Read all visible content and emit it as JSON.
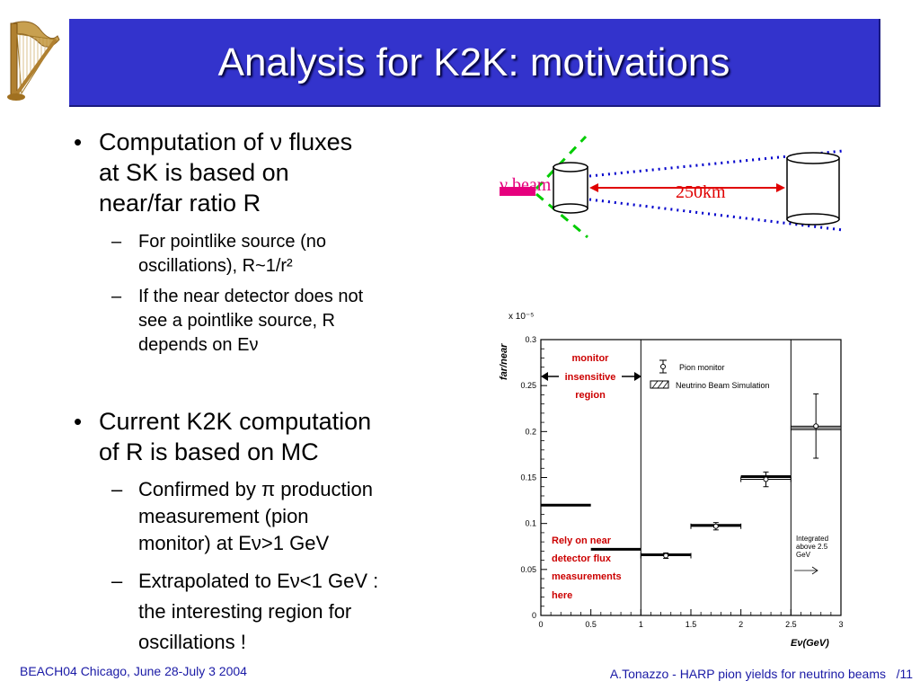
{
  "slide": {
    "title": "Analysis for K2K: motivations",
    "footer_left": "BEACH04 Chicago, June 28-July 3 2004",
    "footer_right": "A.Tonazzo - HARP pion yields for neutrino beams",
    "slide_number": "/11"
  },
  "bullets": {
    "b1_l1": "Computation of ν fluxes",
    "b1_l2": "at SK is based on",
    "b1_l3": "near/far ratio R",
    "s1_l1": "For pointlike source (no",
    "s1_l2": "oscillations), R~1/r²",
    "s2_l1": "If the near detector does not",
    "s2_l2": "see a pointlike source, R",
    "s2_l3": "depends on Eν",
    "b2_l1": "Current K2K computation",
    "b2_l2": "of R is based on MC",
    "s3_l1": "Confirmed by π production",
    "s3_l2": "measurement (pion",
    "s3_l3": "monitor) at Eν>1 GeV",
    "s4_l1": "Extrapolated to Eν<1 GeV :",
    "s4_l2": "the interesting region for",
    "s4_l3": "oscillations !"
  },
  "diagram": {
    "beam_label": "ν beam",
    "distance_label": "250km",
    "colors": {
      "beam": "#e6007e",
      "cone": "#00cc00",
      "dots": "#0000cc",
      "arrow": "#e00000"
    }
  },
  "chart_data": {
    "type": "scatter",
    "exponent_label": "x 10⁻⁵",
    "ylabel": "far/near",
    "xlabel": "Eν(GeV)",
    "xlim": [
      0,
      3
    ],
    "ylim": [
      0,
      0.3
    ],
    "x_ticks": [
      "0",
      "0.5",
      "1",
      "1.5",
      "2",
      "2.5",
      "3"
    ],
    "y_ticks": [
      "0",
      "0.05",
      "0.1",
      "0.15",
      "0.2",
      "0.25",
      "0.3"
    ],
    "legend": {
      "pion_monitor": "Pion monitor",
      "mc": "Neutrino Beam Simulation"
    },
    "annotations": {
      "monitor_insensitive": [
        "monitor",
        "insensitive",
        "region"
      ],
      "rely_near": [
        "Rely on near",
        "detector flux",
        "measurements",
        "here"
      ],
      "integrated": [
        "Integrated",
        "above 2.5",
        "GeV"
      ]
    },
    "series": [
      {
        "name": "Pion monitor",
        "x": [
          1.25,
          1.75,
          2.25,
          2.75
        ],
        "y": [
          0.065,
          0.097,
          0.148,
          0.206
        ],
        "xerr": [
          0.25,
          0.25,
          0.25,
          0
        ],
        "yerr": [
          0.003,
          0.004,
          0.008,
          0.035
        ]
      },
      {
        "name": "Neutrino Beam Simulation",
        "bins": [
          [
            0,
            0.5
          ],
          [
            0.5,
            1.0
          ],
          [
            1.0,
            1.5
          ],
          [
            1.5,
            2.0
          ],
          [
            2.0,
            2.5
          ],
          [
            2.5,
            3.0
          ]
        ],
        "values": [
          0.12,
          0.072,
          0.066,
          0.098,
          0.151,
          0.204
        ]
      }
    ],
    "colors": {
      "annotation_text": "#cc0000"
    }
  }
}
